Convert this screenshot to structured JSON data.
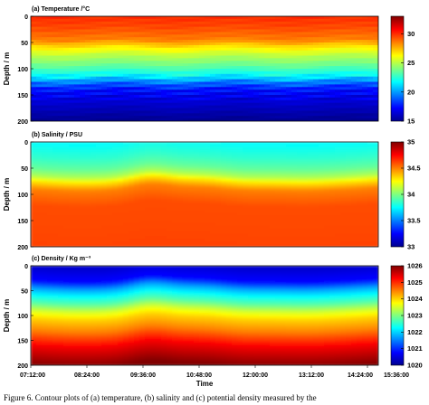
{
  "chart_data": [
    {
      "type": "heatmap",
      "title": "(a) Temperature /°C",
      "ylabel": "Depth / m",
      "xlabel": "",
      "ylim": [
        200,
        0
      ],
      "yticks": [
        "0",
        "50",
        "100",
        "150",
        "200"
      ],
      "xticks": [],
      "colorbar": {
        "min": 15,
        "max": 33,
        "ticks": [
          "30",
          "25",
          "20",
          "15"
        ],
        "tick_values": [
          30,
          25,
          20,
          15
        ]
      },
      "profile": [
        [
          0,
          30
        ],
        [
          20,
          29.5
        ],
        [
          45,
          28.5
        ],
        [
          60,
          26.5
        ],
        [
          75,
          25
        ],
        [
          95,
          23.5
        ],
        [
          115,
          21.5
        ],
        [
          125,
          19.5
        ],
        [
          140,
          17.5
        ],
        [
          165,
          16.3
        ],
        [
          200,
          15
        ]
      ]
    },
    {
      "type": "heatmap",
      "title": "(b) Salinity / PSU",
      "ylabel": "Depth / m",
      "xlabel": "",
      "ylim": [
        200,
        0
      ],
      "yticks": [
        "0",
        "50",
        "100",
        "150",
        "200"
      ],
      "xticks": [],
      "colorbar": {
        "min": 33,
        "max": 35,
        "ticks": [
          "35",
          "34.5",
          "34",
          "33.5",
          "33"
        ],
        "tick_values": [
          35,
          34.5,
          34,
          33.5,
          33
        ]
      },
      "profile": [
        [
          0,
          33.75
        ],
        [
          30,
          33.85
        ],
        [
          50,
          33.95
        ],
        [
          65,
          34.1
        ],
        [
          75,
          34.3
        ],
        [
          90,
          34.5
        ],
        [
          120,
          34.6
        ],
        [
          200,
          34.62
        ]
      ]
    },
    {
      "type": "heatmap",
      "title": "(c) Density / Kg m⁻³",
      "ylabel": "Depth / m",
      "xlabel": "Time",
      "ylim": [
        200,
        0
      ],
      "yticks": [
        "0",
        "50",
        "100",
        "150",
        "200"
      ],
      "xticks": [
        "07:12:00",
        "08:24:00",
        "09:36:00",
        "10:48:00",
        "12:00:00",
        "13:12:00",
        "14:24:00",
        "15:36:00"
      ],
      "colorbar": {
        "min": 1020,
        "max": 1026,
        "ticks": [
          "1026",
          "1025",
          "1024",
          "1023",
          "1022",
          "1021",
          "1020"
        ],
        "tick_values": [
          1026,
          1025,
          1024,
          1023,
          1022,
          1021,
          1020
        ]
      },
      "profile": [
        [
          0,
          1020.4
        ],
        [
          30,
          1020.8
        ],
        [
          45,
          1021.7
        ],
        [
          60,
          1022.3
        ],
        [
          75,
          1022.8
        ],
        [
          90,
          1023.5
        ],
        [
          105,
          1024.0
        ],
        [
          130,
          1024.5
        ],
        [
          160,
          1025.3
        ],
        [
          200,
          1026.0
        ]
      ]
    }
  ],
  "caption": "Figure 6. Contour plots of (a) temperature, (b) salinity and (c) potential density measured by the"
}
